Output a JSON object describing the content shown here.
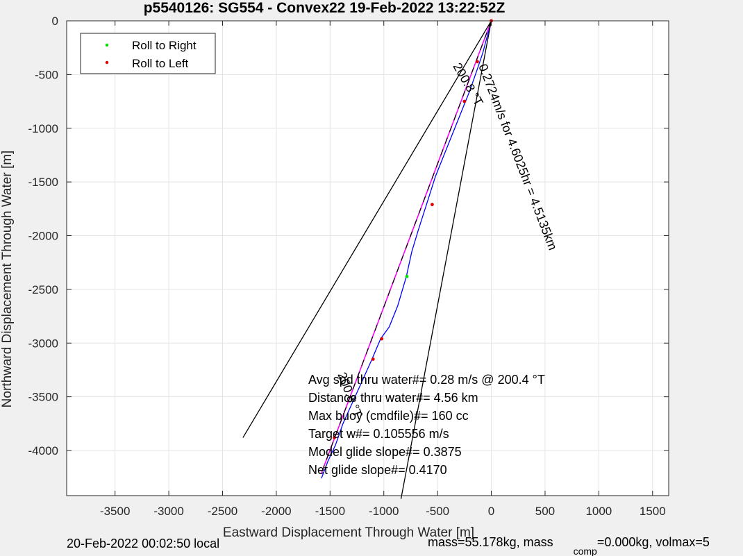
{
  "chart_data": {
    "type": "line",
    "title": "p5540126: SG554 - Convex22 19-Feb-2022 13:22:52Z",
    "xlabel": "Eastward Displacement Through Water [m]",
    "ylabel": "Northward Displacement Through Water [m]",
    "xlim": [
      -3950,
      1650
    ],
    "ylim": [
      -4420,
      0
    ],
    "xticks": [
      -3500,
      -3000,
      -2500,
      -2000,
      -1500,
      -1000,
      -500,
      0,
      500,
      1000,
      1500
    ],
    "yticks": [
      0,
      -500,
      -1000,
      -1500,
      -2000,
      -2500,
      -3000,
      -3500,
      -4000
    ],
    "grid": true,
    "legend": {
      "placement": "top-left",
      "entries": [
        {
          "label": "Roll to Right",
          "color": "#00e000"
        },
        {
          "label": "Roll to Left",
          "color": "#e00000"
        }
      ]
    },
    "series": [
      {
        "style": "track",
        "color": "#0000ff",
        "x": [
          0,
          -40,
          -80,
          -130,
          -200,
          -280,
          -360,
          -440,
          -520,
          -600,
          -680,
          -740,
          -790,
          -870,
          -950,
          -1030,
          -1110,
          -1200,
          -1290,
          -1380,
          -1450,
          -1520,
          -1580
        ],
        "y": [
          0,
          -150,
          -300,
          -450,
          -650,
          -850,
          -1050,
          -1250,
          -1450,
          -1700,
          -1950,
          -2150,
          -2380,
          -2650,
          -2850,
          -2960,
          -3150,
          -3350,
          -3550,
          -3750,
          -3950,
          -4100,
          -4260
        ]
      },
      {
        "style": "mean-course",
        "color": "#ff00ff",
        "x": [
          0,
          -1580
        ],
        "y": [
          0,
          -4210
        ]
      },
      {
        "style": "dashed-course",
        "color": "#000000",
        "x": [
          0,
          -1580
        ],
        "y": [
          0,
          -4210
        ]
      },
      {
        "style": "cone-left",
        "color": "#000000",
        "x": [
          0,
          -2310
        ],
        "y": [
          0,
          -3880
        ]
      },
      {
        "style": "cone-right",
        "color": "#000000",
        "x": [
          0,
          -840
        ],
        "y": [
          0,
          -4450
        ]
      }
    ],
    "points_right": {
      "x": [
        -785
      ],
      "y": [
        -2380
      ]
    },
    "points_left": {
      "x": [
        0,
        -130,
        -250,
        -550,
        -1020,
        -1100,
        -1460
      ],
      "y": [
        0,
        -380,
        -750,
        -1710,
        -2960,
        -3150,
        -3880
      ]
    },
    "annotations": [
      {
        "text": "200.8 °T",
        "x": -360,
        "y": -420,
        "angle": 60
      },
      {
        "text": "0.2724m/s for 4.6025hr = 4.5135km",
        "x": -120,
        "y": -420,
        "angle": 69
      },
      {
        "text": "200.8 °T",
        "x": -1430,
        "y": -3290,
        "angle": 69
      }
    ],
    "summary": [
      "Avg spd thru water#=  0.28 m/s @ 200.4         °T",
      "Distance thru water#=  4.56 km",
      "Max buoy (cmdfile)#= 160 cc",
      "Target w#= 0.105556 m/s",
      "Model glide slope#= 0.3875",
      "Net glide slope#= 0.4170"
    ]
  },
  "footer": {
    "local_time": "20-Feb-2022 00:02:50 local",
    "mass_text": "mass=55.178kg, mass",
    "mass_sub": "comp",
    "mass_rest": "=0.000kg, volmax=5"
  }
}
